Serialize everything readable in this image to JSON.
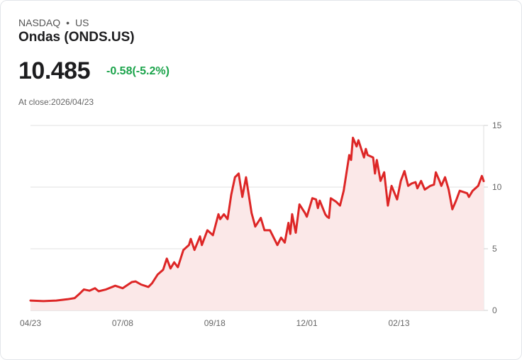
{
  "header": {
    "exchange": "NASDAQ",
    "separator": "•",
    "country": "US",
    "title": "Ondas (ONDS.US)",
    "price": "10.485",
    "change": "-0.58(-5.2%)",
    "close_label": "At close:2026/04/23"
  },
  "colors": {
    "line": "#dd2626",
    "fill": "#fbe8e8",
    "change": "#1aa34a",
    "grid": "#e2e2e2"
  },
  "chart_data": {
    "type": "area",
    "title": "",
    "xlabel": "",
    "ylabel": "",
    "ylim": [
      0,
      15
    ],
    "xlim": [
      0,
      246
    ],
    "grid": true,
    "y_ticks": [
      {
        "v": 0,
        "label": "0"
      },
      {
        "v": 5,
        "label": "5"
      },
      {
        "v": 10,
        "label": "10"
      },
      {
        "v": 15,
        "label": "15"
      }
    ],
    "x_ticks": [
      {
        "v": 0,
        "label": "04/23"
      },
      {
        "v": 50,
        "label": "07/08"
      },
      {
        "v": 100,
        "label": "09/18"
      },
      {
        "v": 150,
        "label": "12/01"
      },
      {
        "v": 200,
        "label": "02/13"
      }
    ],
    "series": [
      {
        "name": "ONDS.US",
        "points": [
          [
            0,
            0.8
          ],
          [
            7,
            0.75
          ],
          [
            14,
            0.8
          ],
          [
            20,
            0.9
          ],
          [
            24,
            1.0
          ],
          [
            27,
            1.4
          ],
          [
            29,
            1.7
          ],
          [
            32,
            1.6
          ],
          [
            35,
            1.8
          ],
          [
            37,
            1.55
          ],
          [
            41,
            1.7
          ],
          [
            46,
            2.0
          ],
          [
            50,
            1.8
          ],
          [
            55,
            2.3
          ],
          [
            57,
            2.35
          ],
          [
            60,
            2.1
          ],
          [
            64,
            1.9
          ],
          [
            66,
            2.2
          ],
          [
            69,
            2.9
          ],
          [
            72,
            3.3
          ],
          [
            74,
            4.2
          ],
          [
            76,
            3.4
          ],
          [
            78,
            3.9
          ],
          [
            80,
            3.5
          ],
          [
            83,
            4.9
          ],
          [
            86,
            5.3
          ],
          [
            87,
            5.8
          ],
          [
            89,
            4.9
          ],
          [
            92,
            6.0
          ],
          [
            93,
            5.3
          ],
          [
            96,
            6.5
          ],
          [
            99,
            6.1
          ],
          [
            102,
            7.8
          ],
          [
            103,
            7.4
          ],
          [
            105,
            7.8
          ],
          [
            107,
            7.4
          ],
          [
            109,
            9.4
          ],
          [
            111,
            10.8
          ],
          [
            113,
            11.1
          ],
          [
            115,
            9.2
          ],
          [
            117,
            10.8
          ],
          [
            120,
            7.9
          ],
          [
            122,
            6.8
          ],
          [
            125,
            7.5
          ],
          [
            127,
            6.5
          ],
          [
            130,
            6.5
          ],
          [
            132,
            5.9
          ],
          [
            134,
            5.3
          ],
          [
            136,
            5.9
          ],
          [
            138,
            5.5
          ],
          [
            140,
            7.1
          ],
          [
            141,
            6.2
          ],
          [
            142,
            7.8
          ],
          [
            144,
            6.3
          ],
          [
            146,
            8.6
          ],
          [
            149,
            7.9
          ],
          [
            150,
            7.6
          ],
          [
            153,
            9.1
          ],
          [
            155,
            9.0
          ],
          [
            156,
            8.3
          ],
          [
            157,
            8.9
          ],
          [
            160,
            7.8
          ],
          [
            161,
            7.6
          ],
          [
            162,
            7.5
          ],
          [
            163,
            9.1
          ],
          [
            166,
            8.8
          ],
          [
            168,
            8.5
          ],
          [
            170,
            9.7
          ],
          [
            173,
            12.6
          ],
          [
            174,
            12.2
          ],
          [
            175,
            14.0
          ],
          [
            177,
            13.3
          ],
          [
            178,
            13.8
          ],
          [
            181,
            12.4
          ],
          [
            182,
            13.1
          ],
          [
            183,
            12.6
          ],
          [
            186,
            12.4
          ],
          [
            187,
            11.1
          ],
          [
            188,
            12.2
          ],
          [
            190,
            10.5
          ],
          [
            192,
            11.2
          ],
          [
            194,
            8.5
          ],
          [
            196,
            10.1
          ],
          [
            199,
            9.0
          ],
          [
            201,
            10.5
          ],
          [
            203,
            11.3
          ],
          [
            205,
            10.1
          ],
          [
            207,
            10.3
          ],
          [
            209,
            10.4
          ],
          [
            210,
            9.9
          ],
          [
            212,
            10.5
          ],
          [
            214,
            9.8
          ],
          [
            217,
            10.1
          ],
          [
            219,
            10.2
          ],
          [
            220,
            11.2
          ],
          [
            222,
            10.5
          ],
          [
            223,
            10.1
          ],
          [
            225,
            10.8
          ],
          [
            227,
            9.8
          ],
          [
            229,
            8.2
          ],
          [
            231,
            8.9
          ],
          [
            233,
            9.7
          ],
          [
            237,
            9.5
          ],
          [
            238,
            9.2
          ],
          [
            240,
            9.7
          ],
          [
            243,
            10.1
          ],
          [
            245,
            10.9
          ],
          [
            246,
            10.485
          ]
        ]
      }
    ]
  }
}
